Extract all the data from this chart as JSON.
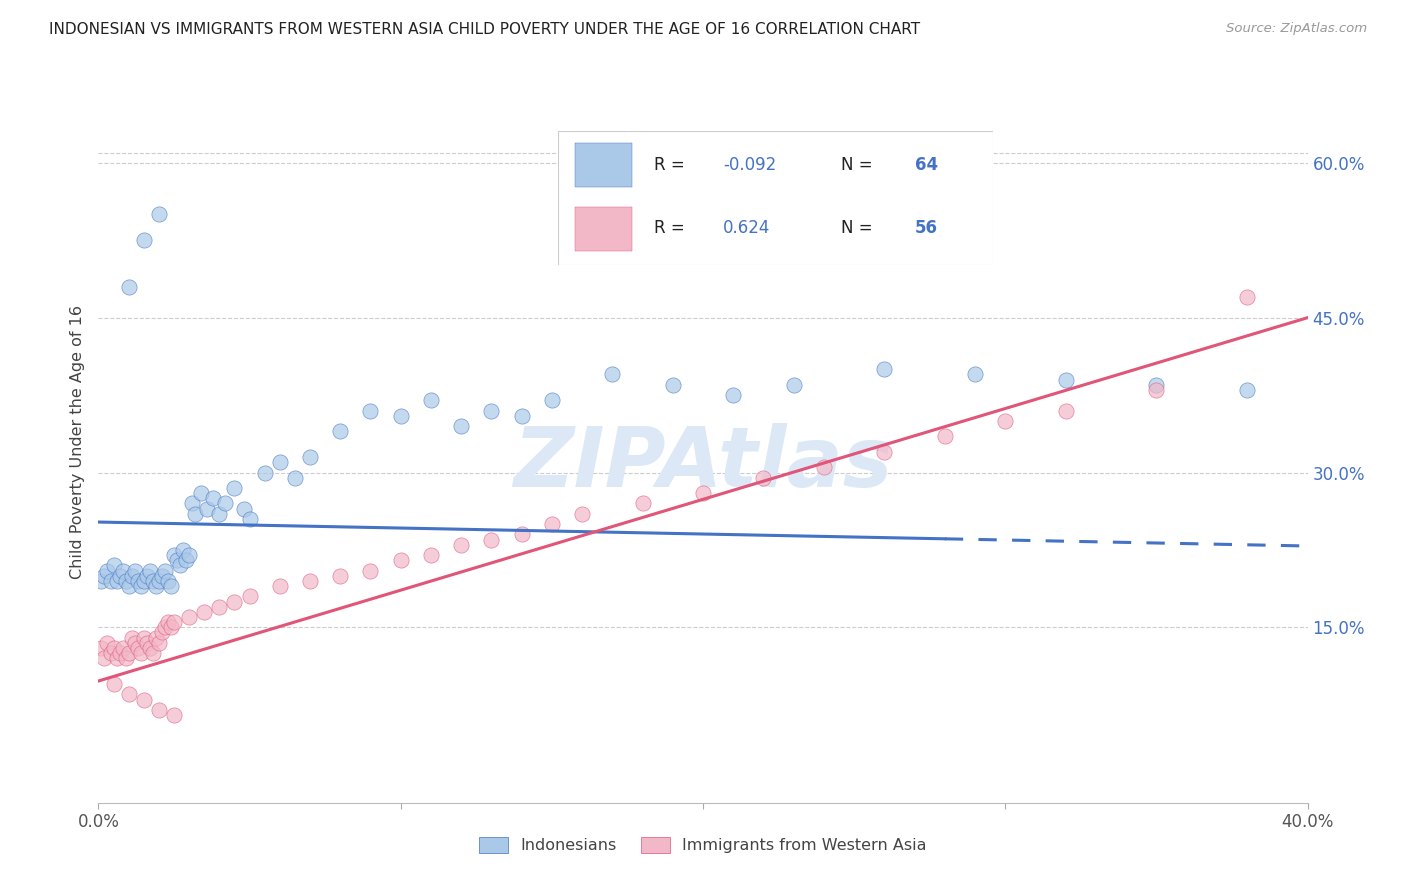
{
  "title": "INDONESIAN VS IMMIGRANTS FROM WESTERN ASIA CHILD POVERTY UNDER THE AGE OF 16 CORRELATION CHART",
  "source": "Source: ZipAtlas.com",
  "ylabel": "Child Poverty Under the Age of 16",
  "ytick_labels": [
    "15.0%",
    "30.0%",
    "45.0%",
    "60.0%"
  ],
  "ytick_values": [
    0.15,
    0.3,
    0.45,
    0.6
  ],
  "xlim": [
    0.0,
    0.4
  ],
  "ylim": [
    -0.02,
    0.68
  ],
  "color_blue": "#aac9e8",
  "color_pink": "#f2b8c8",
  "color_blue_line": "#4472c4",
  "color_pink_line": "#e05578",
  "color_text_blue": "#4472c4",
  "color_grid": "#cccccc",
  "watermark_color": "#dce8f5",
  "label1": "Indonesians",
  "label2": "Immigrants from Western Asia",
  "legend_r1_label": "R = ",
  "legend_r1_val": "-0.092",
  "legend_n1_label": "N = ",
  "legend_n1_val": "64",
  "legend_r2_label": "R =  ",
  "legend_r2_val": "0.624",
  "legend_n2_label": "N = ",
  "legend_n2_val": "56",
  "blue_intercept": 0.252,
  "blue_slope": -0.058,
  "pink_intercept": 0.098,
  "pink_slope": 0.88,
  "indonesian_x": [
    0.001,
    0.002,
    0.003,
    0.004,
    0.005,
    0.006,
    0.007,
    0.008,
    0.009,
    0.01,
    0.011,
    0.012,
    0.013,
    0.014,
    0.015,
    0.016,
    0.017,
    0.018,
    0.019,
    0.02,
    0.021,
    0.022,
    0.023,
    0.024,
    0.025,
    0.026,
    0.027,
    0.028,
    0.029,
    0.03,
    0.031,
    0.032,
    0.034,
    0.036,
    0.038,
    0.04,
    0.042,
    0.045,
    0.048,
    0.05,
    0.055,
    0.06,
    0.065,
    0.07,
    0.08,
    0.09,
    0.1,
    0.11,
    0.12,
    0.13,
    0.14,
    0.15,
    0.17,
    0.19,
    0.21,
    0.23,
    0.26,
    0.29,
    0.32,
    0.35,
    0.38,
    0.01,
    0.015,
    0.02
  ],
  "indonesian_y": [
    0.195,
    0.2,
    0.205,
    0.195,
    0.21,
    0.195,
    0.2,
    0.205,
    0.195,
    0.19,
    0.2,
    0.205,
    0.195,
    0.19,
    0.195,
    0.2,
    0.205,
    0.195,
    0.19,
    0.195,
    0.2,
    0.205,
    0.195,
    0.19,
    0.22,
    0.215,
    0.21,
    0.225,
    0.215,
    0.22,
    0.27,
    0.26,
    0.28,
    0.265,
    0.275,
    0.26,
    0.27,
    0.285,
    0.265,
    0.255,
    0.3,
    0.31,
    0.295,
    0.315,
    0.34,
    0.36,
    0.355,
    0.37,
    0.345,
    0.36,
    0.355,
    0.37,
    0.395,
    0.385,
    0.375,
    0.385,
    0.4,
    0.395,
    0.39,
    0.385,
    0.38,
    0.48,
    0.525,
    0.55
  ],
  "western_asia_x": [
    0.001,
    0.002,
    0.003,
    0.004,
    0.005,
    0.006,
    0.007,
    0.008,
    0.009,
    0.01,
    0.011,
    0.012,
    0.013,
    0.014,
    0.015,
    0.016,
    0.017,
    0.018,
    0.019,
    0.02,
    0.021,
    0.022,
    0.023,
    0.024,
    0.025,
    0.03,
    0.035,
    0.04,
    0.045,
    0.05,
    0.06,
    0.07,
    0.08,
    0.09,
    0.1,
    0.11,
    0.12,
    0.13,
    0.14,
    0.15,
    0.16,
    0.18,
    0.2,
    0.22,
    0.24,
    0.26,
    0.28,
    0.3,
    0.32,
    0.35,
    0.38,
    0.005,
    0.01,
    0.015,
    0.02,
    0.025
  ],
  "western_asia_y": [
    0.13,
    0.12,
    0.135,
    0.125,
    0.13,
    0.12,
    0.125,
    0.13,
    0.12,
    0.125,
    0.14,
    0.135,
    0.13,
    0.125,
    0.14,
    0.135,
    0.13,
    0.125,
    0.14,
    0.135,
    0.145,
    0.15,
    0.155,
    0.15,
    0.155,
    0.16,
    0.165,
    0.17,
    0.175,
    0.18,
    0.19,
    0.195,
    0.2,
    0.205,
    0.215,
    0.22,
    0.23,
    0.235,
    0.24,
    0.25,
    0.26,
    0.27,
    0.28,
    0.295,
    0.305,
    0.32,
    0.335,
    0.35,
    0.36,
    0.38,
    0.47,
    0.095,
    0.085,
    0.08,
    0.07,
    0.065
  ]
}
